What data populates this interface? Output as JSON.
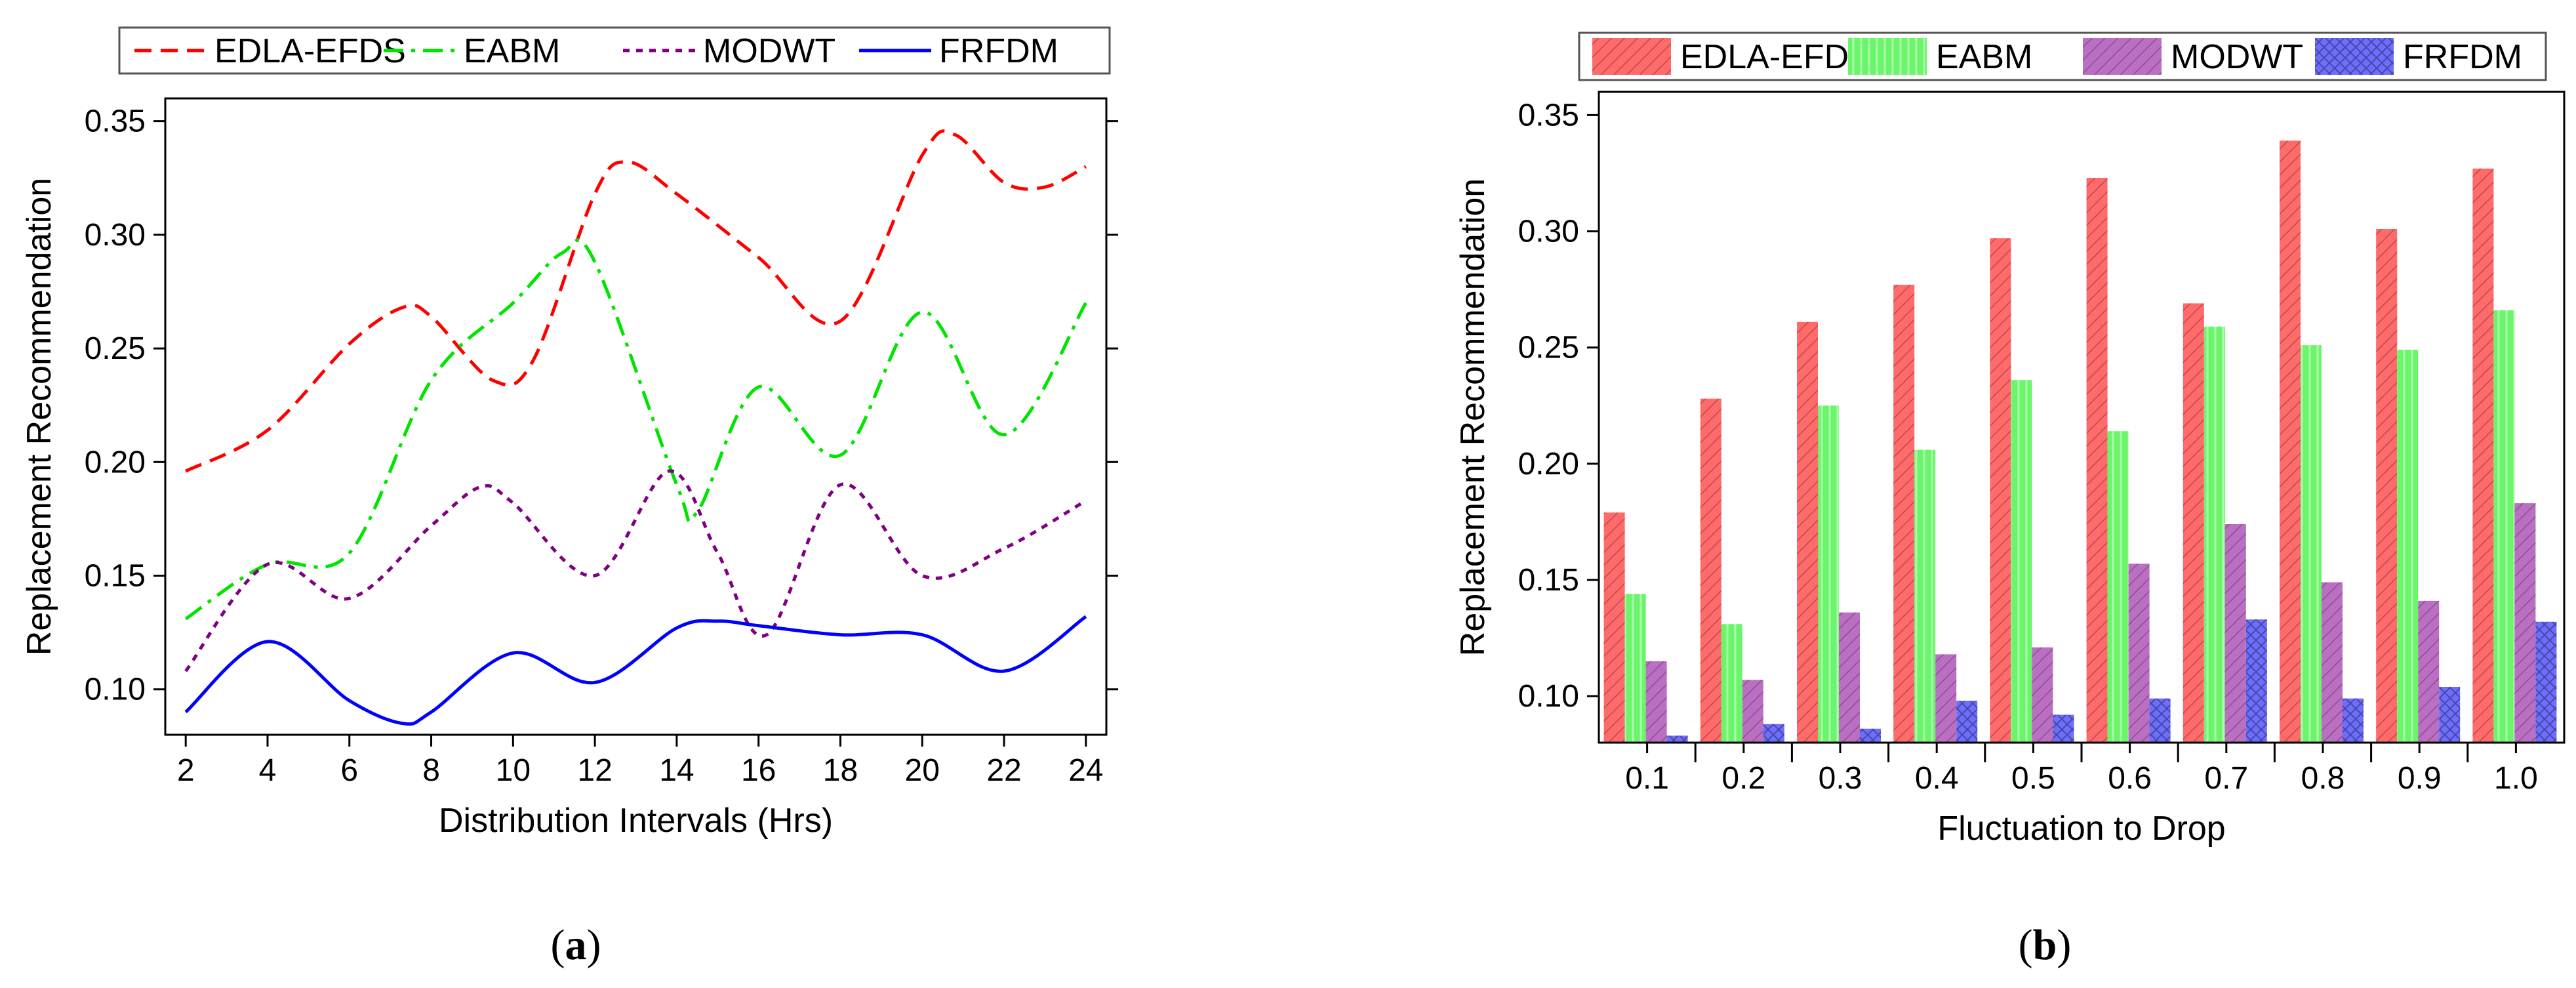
{
  "chart_data": [
    {
      "panel": "a",
      "caption": "a",
      "type": "line",
      "title": "",
      "xlabel": "Distribution Intervals (Hrs)",
      "ylabel": "Replacement Recommendation",
      "xlim": [
        1.5,
        24.5
      ],
      "ylim": [
        0.08,
        0.36
      ],
      "xticks": [
        2,
        4,
        6,
        8,
        10,
        12,
        14,
        16,
        18,
        20,
        22,
        24
      ],
      "xtick_labels": [
        "2",
        "4",
        "6",
        "8",
        "10",
        "12",
        "14",
        "16",
        "18",
        "20",
        "22",
        "24"
      ],
      "yticks": [
        0.1,
        0.15,
        0.2,
        0.25,
        0.3,
        0.35
      ],
      "ytick_labels": [
        "0.10",
        "0.15",
        "0.20",
        "0.25",
        "0.30",
        "0.35"
      ],
      "legend_position": "top",
      "series": [
        {
          "name": "EDLA-EFDS",
          "color": "#ff0000",
          "dash": "dashed",
          "x": [
            2,
            4,
            6,
            7.3,
            8,
            9.5,
            10.5,
            12,
            12.8,
            14,
            16,
            18,
            20,
            20.8,
            22,
            23,
            24
          ],
          "values": [
            0.196,
            0.214,
            0.252,
            0.268,
            0.264,
            0.236,
            0.245,
            0.318,
            0.332,
            0.318,
            0.29,
            0.262,
            0.335,
            0.344,
            0.323,
            0.321,
            0.33
          ]
        },
        {
          "name": "EABM",
          "color": "#00e400",
          "dash": "dashdot",
          "x": [
            2,
            4,
            6,
            8,
            10,
            11.2,
            12,
            14,
            14.5,
            16,
            18,
            20,
            22,
            24
          ],
          "values": [
            0.131,
            0.155,
            0.16,
            0.236,
            0.27,
            0.292,
            0.288,
            0.19,
            0.178,
            0.233,
            0.203,
            0.266,
            0.212,
            0.27
          ]
        },
        {
          "name": "MODWT",
          "color": "#800080",
          "dash": "dotted",
          "x": [
            2,
            4,
            6,
            8,
            9.2,
            10,
            12,
            13.8,
            15,
            16.2,
            18,
            20,
            22,
            24
          ],
          "values": [
            0.108,
            0.155,
            0.14,
            0.172,
            0.189,
            0.182,
            0.15,
            0.196,
            0.16,
            0.124,
            0.19,
            0.15,
            0.162,
            0.183
          ]
        },
        {
          "name": "FRFDM",
          "color": "#0000ff",
          "dash": "solid",
          "x": [
            2,
            4,
            6,
            7.3,
            8,
            10,
            12,
            14,
            15,
            16,
            18,
            20,
            22,
            24
          ],
          "values": [
            0.09,
            0.121,
            0.095,
            0.085,
            0.09,
            0.116,
            0.103,
            0.127,
            0.13,
            0.128,
            0.124,
            0.124,
            0.108,
            0.132
          ]
        }
      ]
    },
    {
      "panel": "b",
      "caption": "b",
      "type": "bar",
      "title": "",
      "xlabel": "Fluctuation to Drop",
      "ylabel": "Replacement Recommendation",
      "ylim": [
        0.08,
        0.36
      ],
      "yticks": [
        0.1,
        0.15,
        0.2,
        0.25,
        0.3,
        0.35
      ],
      "ytick_labels": [
        "0.10",
        "0.15",
        "0.20",
        "0.25",
        "0.30",
        "0.35"
      ],
      "categories": [
        "0.1",
        "0.2",
        "0.3",
        "0.4",
        "0.5",
        "0.6",
        "0.7",
        "0.8",
        "0.9",
        "1.0"
      ],
      "legend_position": "top",
      "series": [
        {
          "name": "EDLA-EFDS",
          "color": "#ff6a6a",
          "hatch": "diagonal",
          "values": [
            0.179,
            0.228,
            0.261,
            0.277,
            0.297,
            0.323,
            0.269,
            0.339,
            0.301,
            0.327
          ]
        },
        {
          "name": "EABM",
          "color": "#6af56a",
          "hatch": "vertical",
          "values": [
            0.144,
            0.131,
            0.225,
            0.206,
            0.236,
            0.214,
            0.259,
            0.251,
            0.249,
            0.266
          ]
        },
        {
          "name": "MODWT",
          "color": "#bb6fc3",
          "hatch": "diagonal",
          "values": [
            0.115,
            0.107,
            0.136,
            0.118,
            0.121,
            0.157,
            0.174,
            0.149,
            0.141,
            0.183
          ]
        },
        {
          "name": "FRFDM",
          "color": "#6e6efe",
          "hatch": "crosshatch",
          "values": [
            0.083,
            0.088,
            0.086,
            0.098,
            0.092,
            0.099,
            0.133,
            0.099,
            0.104,
            0.132
          ]
        }
      ]
    }
  ]
}
